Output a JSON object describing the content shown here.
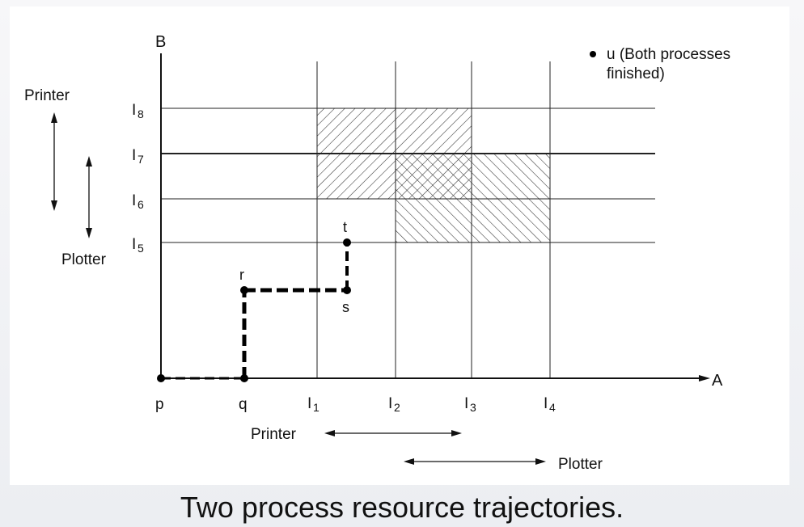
{
  "figure": {
    "axis_y": "B",
    "axis_x": "A",
    "left_resources": [
      "Printer",
      "Plotter"
    ],
    "y_ticks": [
      "8",
      "7",
      "6",
      "5"
    ],
    "x_points": [
      "p",
      "q"
    ],
    "x_ticks": [
      "1",
      "2",
      "3",
      "4"
    ],
    "tick_prefix": "I",
    "trajectory_points": [
      "r",
      "s",
      "t"
    ],
    "legend": {
      "line1": "u (Both processes",
      "line2": "finished)"
    },
    "bottom_resources": [
      "Printer",
      "Plotter"
    ]
  },
  "caption": "Two process resource trajectories."
}
